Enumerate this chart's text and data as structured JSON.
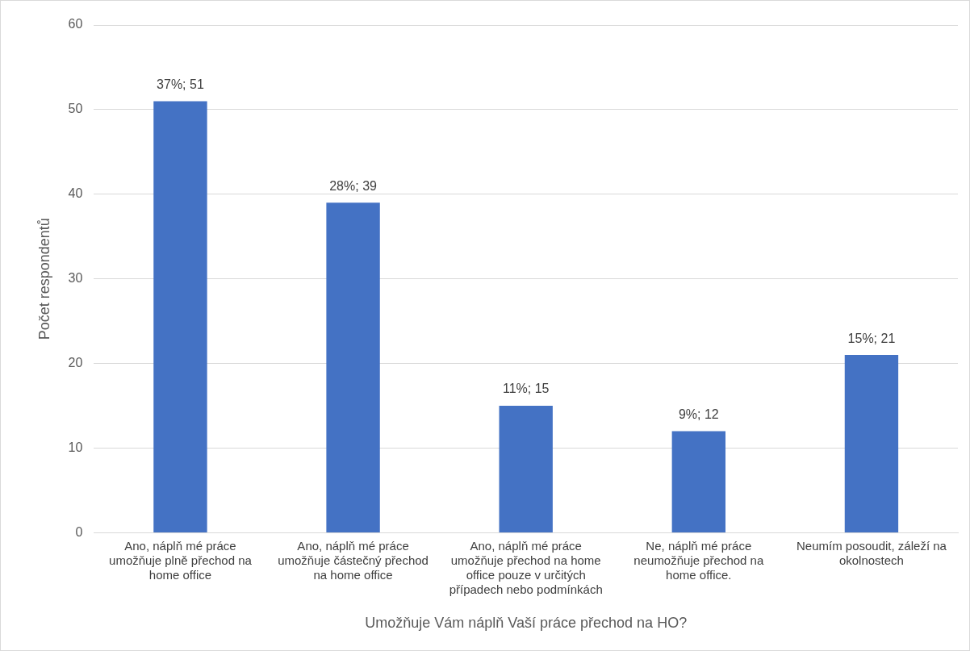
{
  "chart_data": {
    "type": "bar",
    "xlabel": "Umožňuje Vám náplň Vaší práce přechod na HO?",
    "ylabel": "Počet respondentů",
    "categories": [
      "Ano, náplň mé práce umožňuje plně přechod na home office",
      "Ano, náplň mé práce umožňuje částečný přechod na home office",
      "Ano, náplň mé práce umožňuje přechod na home office pouze v určitých případech nebo podmínkách",
      "Ne, náplň mé práce neumožňuje přechod na home office.",
      "Neumím posoudit, záleží na okolnostech"
    ],
    "values": [
      51,
      39,
      15,
      12,
      21
    ],
    "value_labels": [
      "37%; 51",
      "28%; 39",
      "11%; 15",
      "9%; 12",
      "15%; 21"
    ],
    "color": "#4472c4",
    "ylim": [
      0,
      60
    ],
    "yticks": [
      0,
      10,
      20,
      30,
      40,
      50,
      60
    ],
    "grid": "y",
    "legend": false
  }
}
